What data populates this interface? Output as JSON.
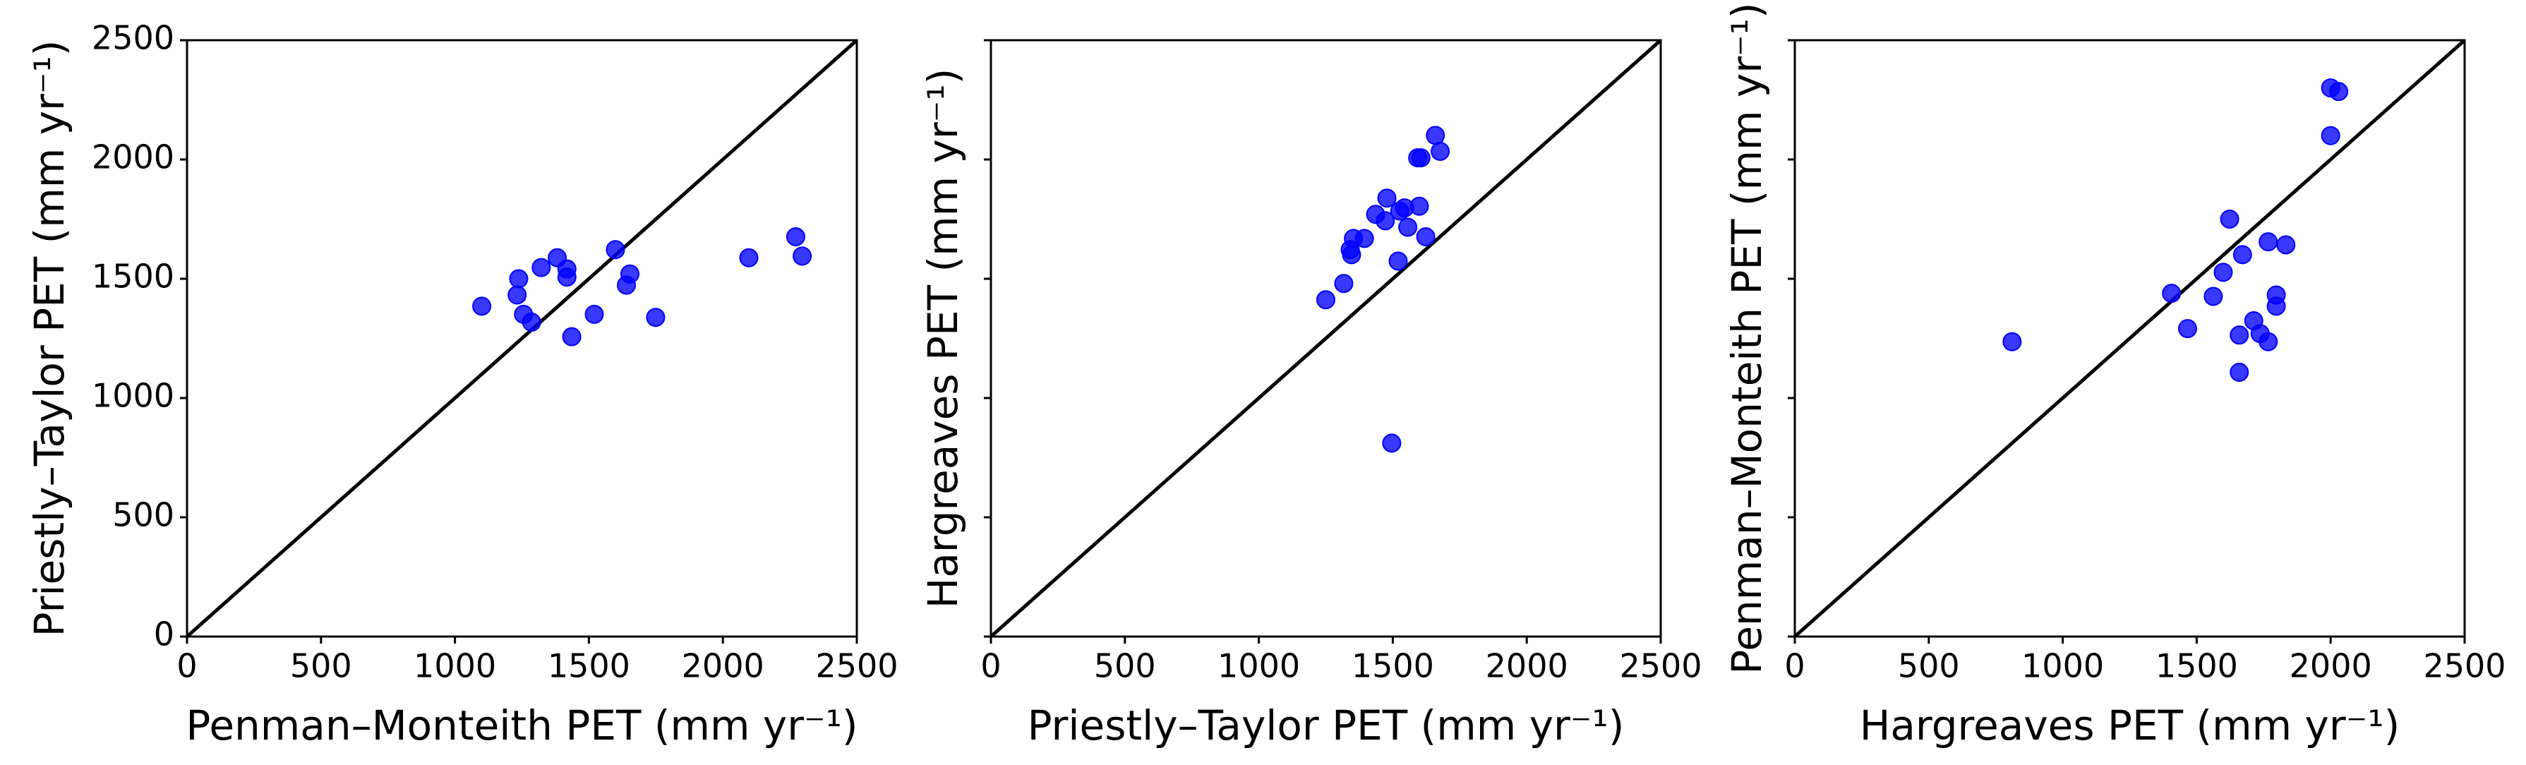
{
  "chart_data": [
    {
      "type": "scatter",
      "xlabel": "Penman–Monteith PET (mm yr⁻¹)",
      "ylabel": "Priestly–Taylor PET (mm yr⁻¹)",
      "x": [
        1100,
        1238,
        1232,
        1256,
        1286,
        1322,
        1382,
        1418,
        1418,
        1436,
        1520,
        1599,
        1653,
        1640,
        1749,
        2097,
        2272,
        2296
      ],
      "y": [
        1385,
        1500,
        1432,
        1351,
        1318,
        1547,
        1588,
        1541,
        1507,
        1257,
        1351,
        1622,
        1520,
        1473,
        1338,
        1588,
        1676,
        1595
      ],
      "color": "#0000ff",
      "xlim": [
        0,
        2500
      ],
      "ylim": [
        0,
        2500
      ],
      "xticks": [
        0,
        500,
        1000,
        1500,
        2000,
        2500
      ],
      "yticks": [
        0,
        500,
        1000,
        1500,
        2000,
        2500
      ],
      "ytick_labels": true
    },
    {
      "type": "scatter",
      "xlabel": "Priestly–Taylor PET (mm yr⁻¹)",
      "ylabel": "Hargreaves PET (mm yr⁻¹)",
      "x": [
        1250,
        1317,
        1341,
        1346,
        1394,
        1353,
        1436,
        1472,
        1478,
        1520,
        1526,
        1544,
        1556,
        1593,
        1605,
        1599,
        1623,
        1659,
        1677,
        1496
      ],
      "y": [
        1412,
        1480,
        1622,
        1601,
        1669,
        1669,
        1770,
        1743,
        1838,
        1574,
        1784,
        1797,
        1716,
        2007,
        2007,
        1804,
        1676,
        2101,
        2034,
        811
      ],
      "color": "#0000ff",
      "xlim": [
        0,
        2500
      ],
      "ylim": [
        0,
        2500
      ],
      "xticks": [
        0,
        500,
        1000,
        1500,
        2000,
        2500
      ],
      "yticks": [
        0,
        500,
        1000,
        1500,
        2000,
        2500
      ],
      "ytick_labels": false
    },
    {
      "type": "scatter",
      "xlabel": "Hargreaves PET (mm yr⁻¹)",
      "ylabel": "Penman–Monteith PET (mm yr⁻¹)",
      "x": [
        811,
        1406,
        1466,
        1562,
        1599,
        1623,
        1659,
        1671,
        1659,
        1713,
        1737,
        1767,
        1767,
        1797,
        1797,
        1833,
        2000,
        2030,
        2000
      ],
      "y": [
        1236,
        1439,
        1291,
        1426,
        1527,
        1750,
        1264,
        1601,
        1108,
        1324,
        1270,
        1236,
        1655,
        1432,
        1385,
        1642,
        2300,
        2285,
        2100
      ],
      "color": "#0000ff",
      "xlim": [
        0,
        2500
      ],
      "ylim": [
        0,
        2500
      ],
      "xticks": [
        0,
        500,
        1000,
        1500,
        2000,
        2500
      ],
      "yticks": [
        0,
        500,
        1000,
        1500,
        2000,
        2500
      ],
      "ytick_labels": false
    }
  ]
}
